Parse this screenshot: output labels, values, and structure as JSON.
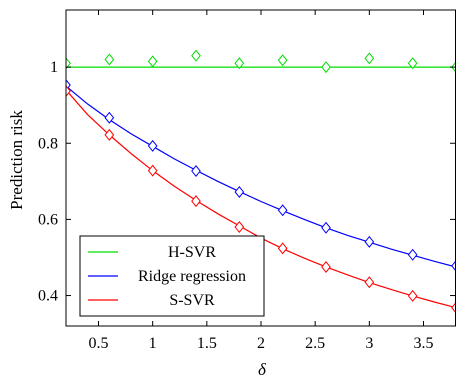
{
  "chart_data": {
    "type": "line",
    "xlabel": "δ",
    "ylabel": "Prediction risk",
    "xlim": [
      0.2,
      3.8
    ],
    "ylim": [
      0.32,
      1.15
    ],
    "grid": false,
    "legend_position": "bottom-left",
    "xticks": [
      0.5,
      1,
      1.5,
      2,
      2.5,
      3,
      3.5
    ],
    "xtick_labels": [
      "0.5",
      "1",
      "1.5",
      "2",
      "2.5",
      "3",
      "3.5"
    ],
    "yticks": [
      0.4,
      0.6,
      0.8,
      1
    ],
    "ytick_labels": [
      "0.4",
      "0.6",
      "0.8",
      "1"
    ],
    "series": [
      {
        "name": "H-SVR",
        "color": "#00dd00",
        "line": {
          "x": [
            0.2,
            3.8
          ],
          "y": [
            1.0,
            1.0
          ]
        },
        "markers": {
          "x": [
            0.2,
            0.6,
            1.0,
            1.4,
            1.8,
            2.2,
            2.6,
            3.0,
            3.4,
            3.8
          ],
          "y": [
            1.01,
            1.02,
            1.015,
            1.03,
            1.01,
            1.018,
            1.0,
            1.023,
            1.01,
            1.0
          ]
        }
      },
      {
        "name": "Ridge regression",
        "color": "#0000ff",
        "line": {
          "x": [
            0.2,
            0.4,
            0.6,
            0.8,
            1.0,
            1.2,
            1.4,
            1.6,
            1.8,
            2.0,
            2.2,
            2.4,
            2.6,
            2.8,
            3.0,
            3.2,
            3.4,
            3.6,
            3.8
          ],
          "y": [
            0.95,
            0.903,
            0.862,
            0.825,
            0.792,
            0.759,
            0.729,
            0.7,
            0.673,
            0.647,
            0.623,
            0.6,
            0.578,
            0.558,
            0.54,
            0.522,
            0.506,
            0.49,
            0.475
          ]
        },
        "markers": {
          "x": [
            0.2,
            0.6,
            1.0,
            1.4,
            1.8,
            2.2,
            2.6,
            3.0,
            3.4,
            3.8
          ],
          "y": [
            0.953,
            0.867,
            0.793,
            0.727,
            0.672,
            0.624,
            0.578,
            0.541,
            0.507,
            0.478
          ]
        }
      },
      {
        "name": "S-SVR",
        "color": "#ff0000",
        "line": {
          "x": [
            0.2,
            0.4,
            0.6,
            0.8,
            1.0,
            1.2,
            1.4,
            1.6,
            1.8,
            2.0,
            2.2,
            2.4,
            2.6,
            2.8,
            3.0,
            3.2,
            3.4,
            3.6,
            3.8
          ],
          "y": [
            0.94,
            0.875,
            0.822,
            0.773,
            0.728,
            0.687,
            0.65,
            0.615,
            0.583,
            0.551,
            0.523,
            0.498,
            0.475,
            0.454,
            0.434,
            0.416,
            0.399,
            0.383,
            0.368
          ]
        },
        "markers": {
          "x": [
            0.2,
            0.6,
            1.0,
            1.4,
            1.8,
            2.2,
            2.6,
            3.0,
            3.4,
            3.8
          ],
          "y": [
            0.937,
            0.822,
            0.728,
            0.648,
            0.58,
            0.524,
            0.475,
            0.435,
            0.399,
            0.368
          ]
        }
      }
    ]
  }
}
